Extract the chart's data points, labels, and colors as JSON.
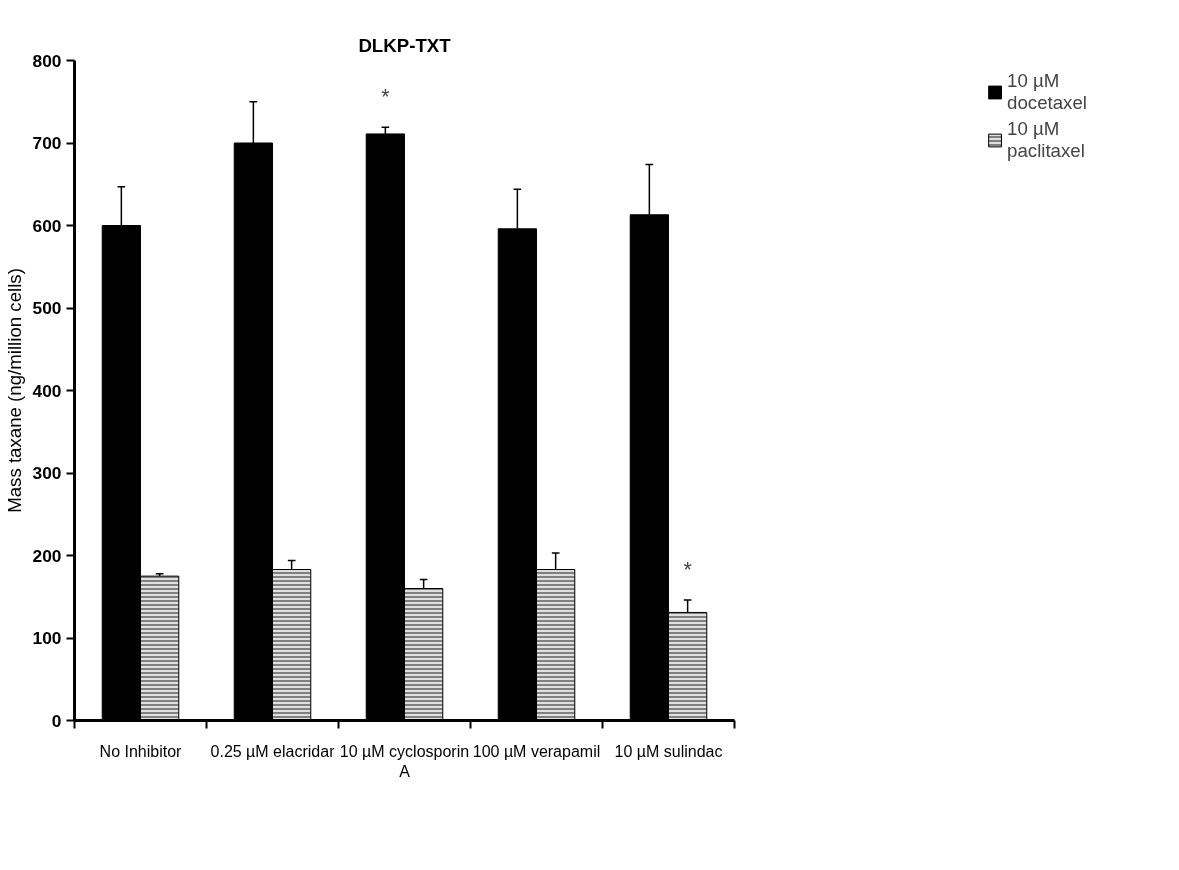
{
  "chart_data": {
    "type": "bar",
    "title": "DLKP-TXT",
    "ylabel": "Mass taxane (ng/million cells)",
    "categories": [
      "No Inhibitor",
      "0.25 µM elacridar",
      "10 µM cyclosporin A",
      "100 µM verapamil",
      "10 µM sulindac"
    ],
    "series": [
      {
        "name": "10 µM docetaxel",
        "color": "#000000",
        "values": [
          600,
          700,
          711,
          596,
          613
        ],
        "errors": [
          [
            600,
            647
          ],
          [
            700,
            750
          ],
          [
            711,
            719
          ],
          [
            596,
            644
          ],
          [
            613,
            674
          ]
        ]
      },
      {
        "name": "10 µM paclitaxel",
        "color": "#808080",
        "values": [
          175,
          183,
          160,
          183,
          131
        ],
        "errors": [
          [
            175,
            178
          ],
          [
            183,
            194
          ],
          [
            160,
            171
          ],
          [
            183,
            203
          ],
          [
            131,
            146
          ]
        ]
      }
    ],
    "ylim": [
      0,
      800
    ],
    "yticks": [
      0,
      100,
      200,
      300,
      400,
      500,
      600,
      700,
      800
    ],
    "annotations": [
      {
        "text": "*",
        "x": "10 µM cyclosporin A",
        "y": 711
      },
      {
        "text": "*",
        "x": "10 µM sulindac",
        "y": 131
      }
    ],
    "grid": false,
    "legend": "top right"
  }
}
